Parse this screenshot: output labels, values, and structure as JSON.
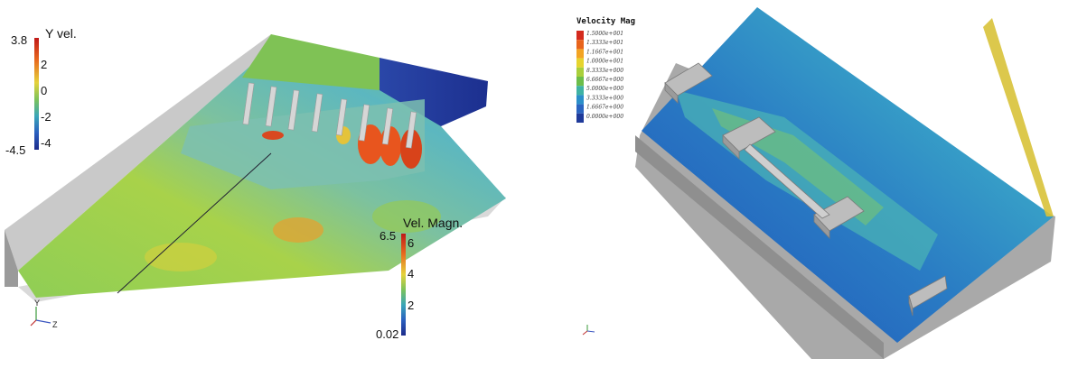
{
  "left_panel": {
    "y_vel_bar": {
      "title": "Y vel.",
      "max": "3.8",
      "min": "-4.5",
      "ticks": [
        "2",
        "0",
        "-2",
        "-4"
      ]
    },
    "vel_magn_bar": {
      "title": "Vel. Magn.",
      "max": "6.5",
      "min": "0.02",
      "ticks": [
        "6",
        "4",
        "2"
      ]
    },
    "axes": {
      "y": "Y",
      "z": "Z"
    }
  },
  "right_panel": {
    "legend": {
      "title": "Velocity Mag",
      "labels": [
        "1.5000e+001",
        "1.3333e+001",
        "1.1667e+001",
        "1.0000e+001",
        "8.3333e+000",
        "6.6667e+000",
        "5.0000e+000",
        "3.3333e+000",
        "1.6667e+000",
        "0.0000e+000"
      ],
      "colors": [
        "#d42b1e",
        "#e8641c",
        "#f3a423",
        "#e6d42e",
        "#a9cf3b",
        "#6cbd4a",
        "#3fb2a4",
        "#2b8fc9",
        "#2a64c0",
        "#1f3a9a"
      ]
    }
  }
}
